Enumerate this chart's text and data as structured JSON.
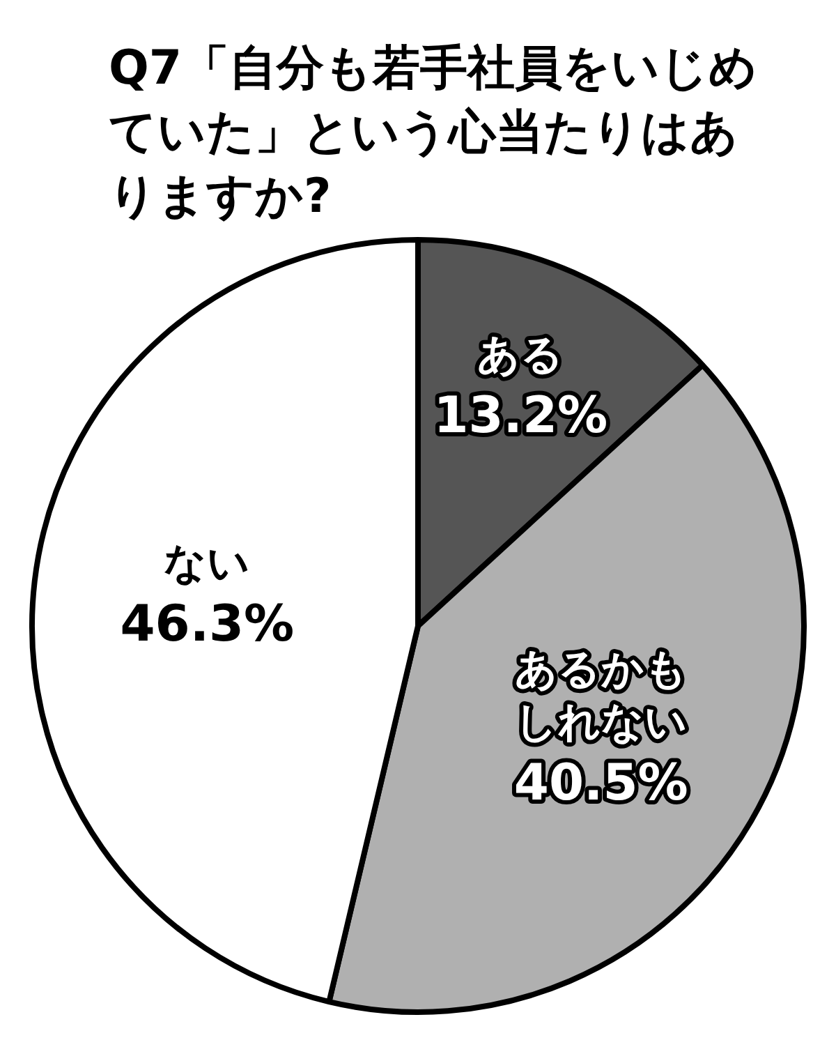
{
  "chart_data": {
    "type": "pie",
    "title": "Q7「自分も若手社員をいじめていた」という心当たりはありますか?",
    "categories": [
      "ある",
      "あるかもしれない",
      "ない"
    ],
    "values": [
      13.2,
      40.5,
      46.3
    ],
    "colors": [
      "#555555",
      "#b0b0b0",
      "#ffffff"
    ],
    "value_labels": [
      "13.2%",
      "40.5%",
      "46.3%"
    ],
    "legend": false
  }
}
